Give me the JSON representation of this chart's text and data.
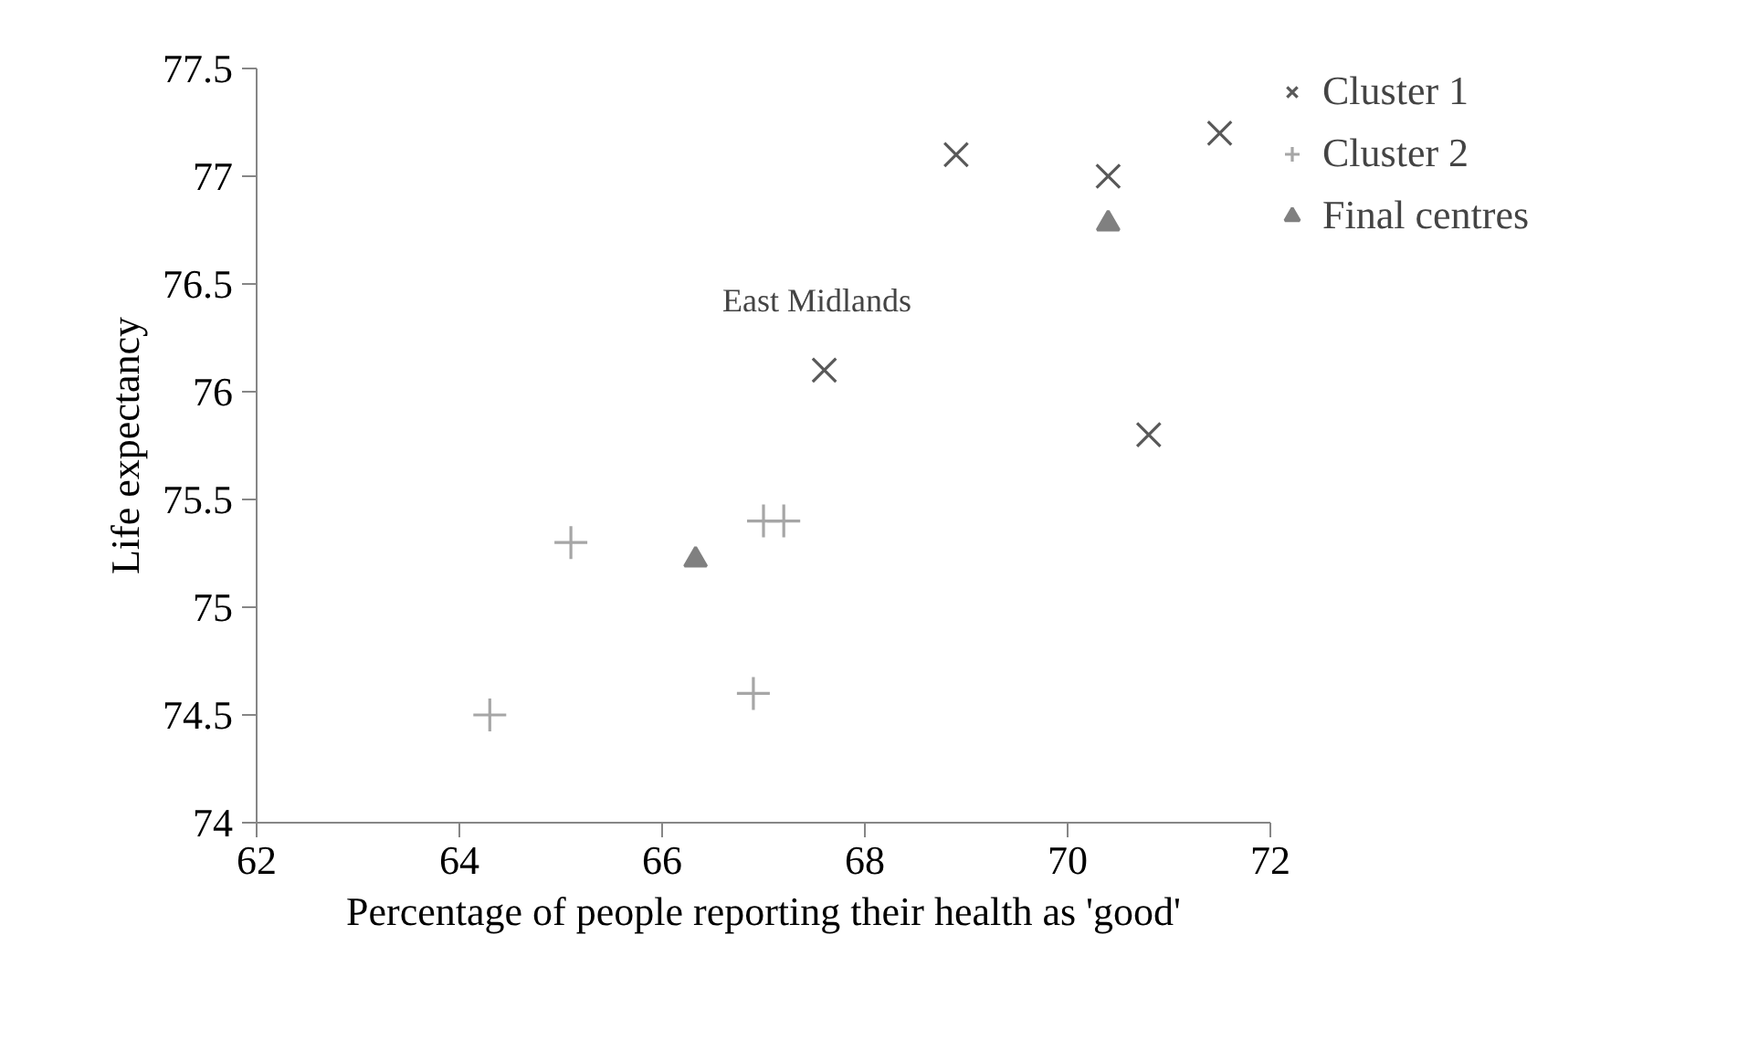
{
  "chart_data": {
    "type": "scatter",
    "xlabel": "Percentage of people reporting their health as 'good'",
    "ylabel": "Life expectancy",
    "xlim": [
      62,
      72
    ],
    "xticks": [
      62,
      64,
      66,
      68,
      70,
      72
    ],
    "ylim": [
      74,
      77.5
    ],
    "yticks": [
      74,
      74.5,
      75,
      75.5,
      76,
      76.5,
      77,
      77.5
    ],
    "grid": false,
    "legend": "right",
    "series": [
      {
        "name": "Cluster 1",
        "color": "#595959",
        "marker": "cross",
        "x": [
          67.6,
          68.9,
          70.4,
          71.5,
          70.8
        ],
        "values": [
          76.1,
          77.1,
          77.0,
          77.2,
          75.8
        ]
      },
      {
        "name": "Cluster 2",
        "color": "#a6a6a6",
        "marker": "plus",
        "x": [
          64.3,
          65.1,
          66.9,
          67.0,
          67.2
        ],
        "values": [
          74.5,
          75.3,
          74.6,
          75.4,
          75.4
        ]
      },
      {
        "name": "Final centres",
        "color": "#808080",
        "marker": "triangle",
        "x": [
          66.33,
          70.4
        ],
        "values": [
          75.22,
          76.78
        ]
      }
    ],
    "annotations": [
      {
        "text": "East Midlands",
        "x": 67.6,
        "y": 76.1
      }
    ]
  }
}
